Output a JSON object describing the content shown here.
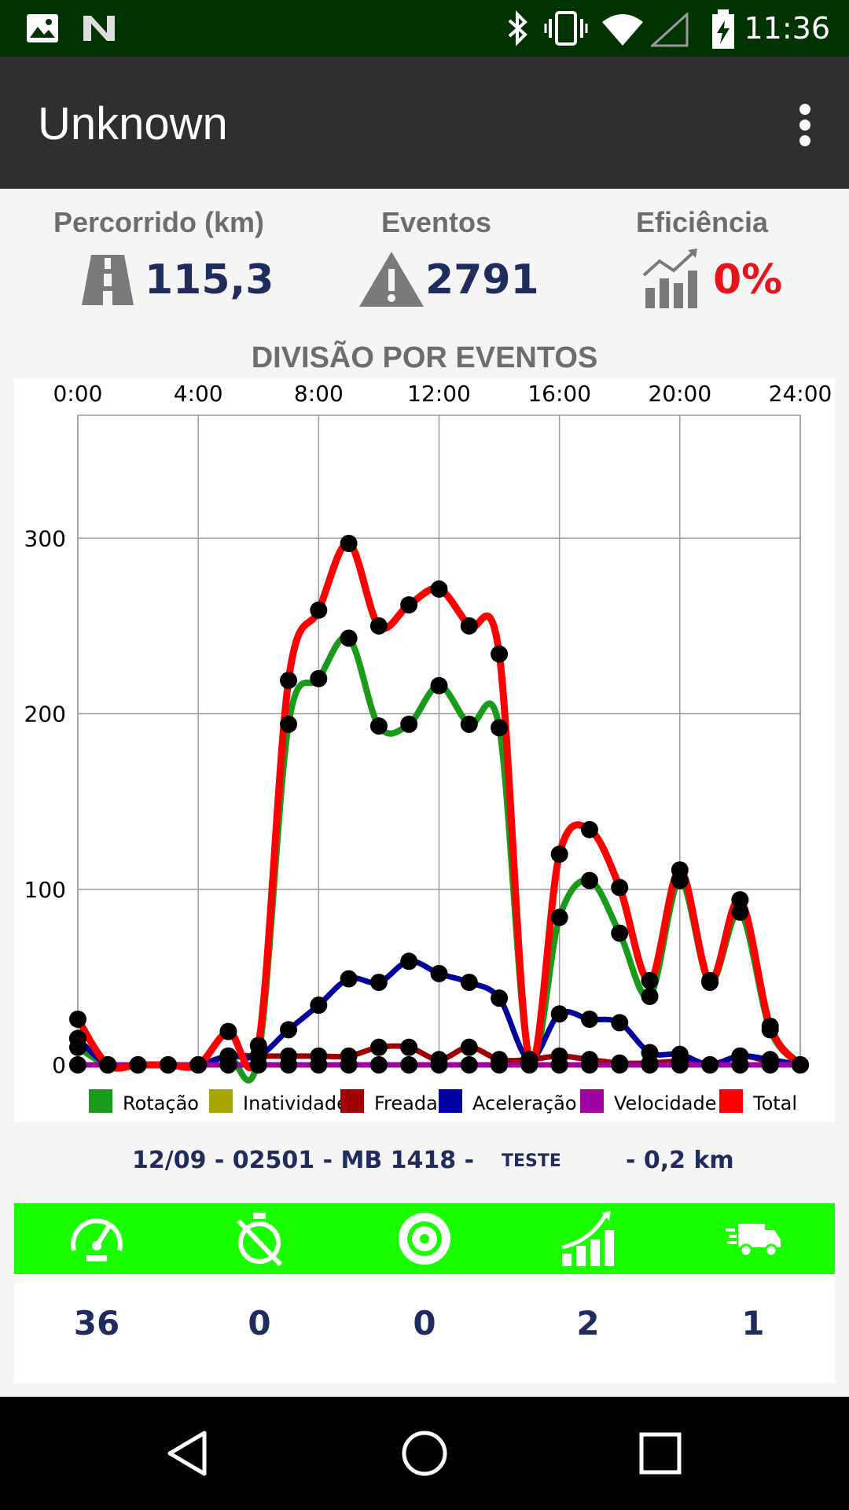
{
  "status_bar": {
    "time": "11:36"
  },
  "app_bar": {
    "title": "Unknown"
  },
  "stats": [
    {
      "label": "Percorrido (km)",
      "value": "115,3"
    },
    {
      "label": "Eventos",
      "value": "2791"
    },
    {
      "label": "Eficiência",
      "value": "0%"
    }
  ],
  "chart_title": "DIVISÃO POR EVENTOS",
  "chart_data": {
    "type": "line",
    "title": "DIVISÃO POR EVENTOS",
    "x_tick_labels": [
      "0:00",
      "4:00",
      "8:00",
      "12:00",
      "16:00",
      "20:00",
      "24:00"
    ],
    "y_tick_labels": [
      "0",
      "100",
      "200",
      "300"
    ],
    "xlim": [
      0,
      24
    ],
    "ylim": [
      0,
      370
    ],
    "grid": true,
    "legend_position": "bottom",
    "x": [
      0,
      1,
      2,
      3,
      4,
      5,
      6,
      7,
      8,
      9,
      10,
      11,
      12,
      13,
      14,
      15,
      16,
      17,
      18,
      19,
      20,
      21,
      22,
      23,
      24
    ],
    "series": [
      {
        "name": "Rotação",
        "color": "#1a9a1a",
        "values": [
          10,
          0,
          0,
          0,
          0,
          5,
          5,
          194,
          220,
          243,
          193,
          194,
          216,
          194,
          192,
          3,
          84,
          105,
          75,
          39,
          105,
          47,
          87,
          20,
          0
        ]
      },
      {
        "name": "Inatividade",
        "color": "#a6a600",
        "values": [
          0,
          0,
          0,
          0,
          0,
          0,
          0,
          0,
          0,
          0,
          0,
          0,
          0,
          0,
          0,
          0,
          0,
          0,
          0,
          0,
          0,
          0,
          0,
          0,
          0
        ]
      },
      {
        "name": "Freada",
        "color": "#a00000",
        "values": [
          15,
          0,
          0,
          0,
          0,
          5,
          5,
          5,
          5,
          5,
          10,
          10,
          3,
          10,
          3,
          3,
          5,
          3,
          1,
          1,
          2,
          0,
          5,
          2,
          0
        ]
      },
      {
        "name": "Aceleração",
        "color": "#00009e",
        "values": [
          15,
          0,
          0,
          0,
          0,
          5,
          5,
          20,
          34,
          49,
          47,
          59,
          52,
          47,
          38,
          3,
          29,
          26,
          24,
          7,
          6,
          0,
          5,
          3,
          0
        ]
      },
      {
        "name": "Velocidade",
        "color": "#a000a0",
        "values": [
          0,
          0,
          0,
          0,
          0,
          0,
          0,
          0,
          0,
          0,
          0,
          0,
          0,
          0,
          0,
          0,
          0,
          0,
          0,
          0,
          0,
          0,
          0,
          0,
          0
        ]
      },
      {
        "name": "Total",
        "color": "#ff0000",
        "values": [
          26,
          0,
          0,
          0,
          0,
          19,
          11,
          219,
          259,
          297,
          250,
          262,
          271,
          250,
          234,
          3,
          120,
          134,
          101,
          48,
          111,
          48,
          94,
          22,
          0
        ]
      }
    ]
  },
  "trip": {
    "left": "12/09 - 02501 - MB 1418 -",
    "middle": "TESTE",
    "right": "- 0,2 km"
  },
  "icon_bar": {
    "color": "#1aff00",
    "items": [
      {
        "icon": "speedometer-icon",
        "count": "36"
      },
      {
        "icon": "stopwatch-off-icon",
        "count": "0"
      },
      {
        "icon": "brake-disc-icon",
        "count": "0"
      },
      {
        "icon": "rising-bars-icon",
        "count": "2"
      },
      {
        "icon": "delivery-truck-icon",
        "count": "1"
      }
    ]
  }
}
